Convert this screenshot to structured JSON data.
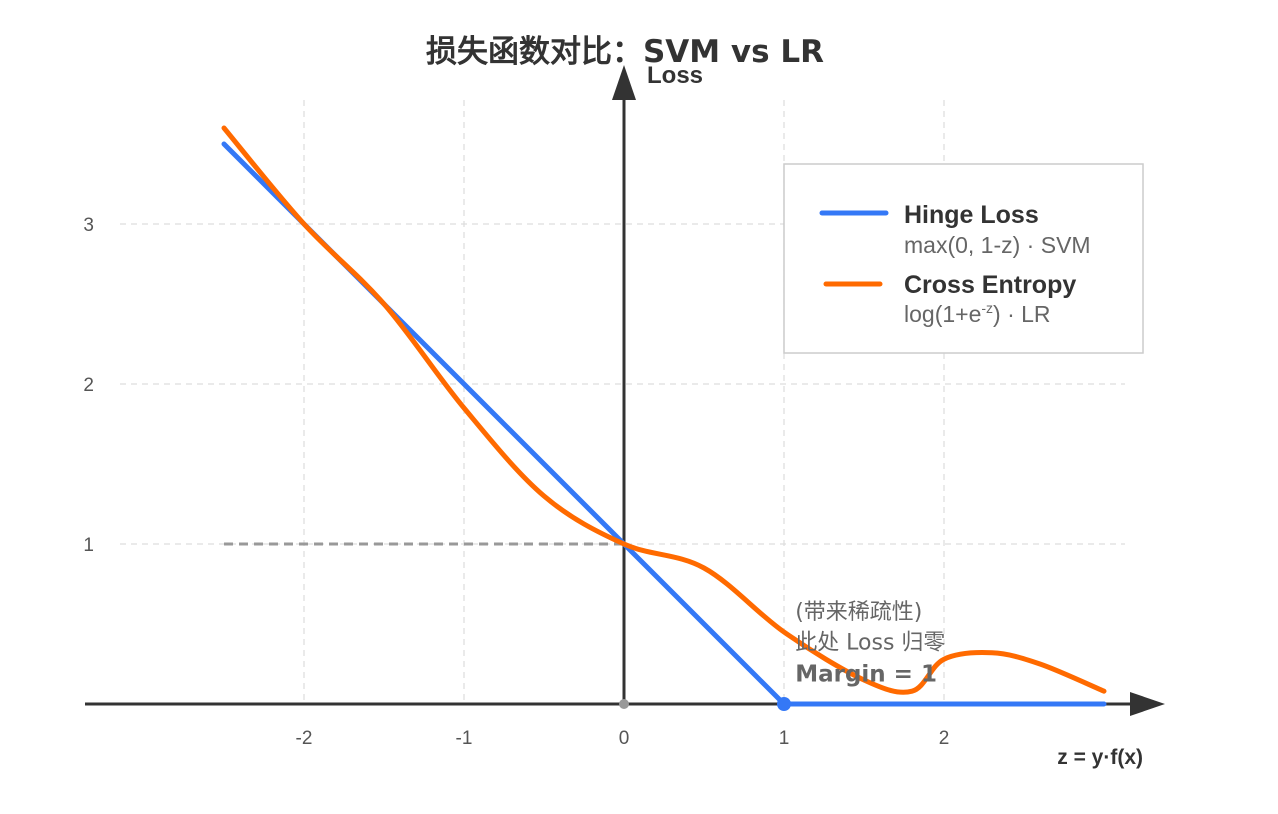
{
  "chart_data": {
    "type": "line",
    "title": "损失函数对比：SVM vs LR",
    "xlabel": "z = y·f(x)",
    "ylabel": "Loss",
    "xlim": [
      -3.4,
      3.4
    ],
    "ylim": [
      0,
      3.8
    ],
    "x_ticks": [
      -2,
      -1,
      0,
      1,
      2
    ],
    "y_ticks": [
      1,
      2,
      3
    ],
    "x_tick_labels": [
      "-2",
      "-1",
      "0",
      "1",
      "2"
    ],
    "y_tick_labels": [
      "1",
      "2",
      "3"
    ],
    "grid": true,
    "legend_position": "top-right",
    "series": [
      {
        "name": "Hinge Loss",
        "formula": "max(0, 1-z) · SVM",
        "color": "#3478f6",
        "x": [
          -2.5,
          1.0,
          3.0
        ],
        "y": [
          3.5,
          0.0,
          0.0
        ]
      },
      {
        "name": "Cross Entropy",
        "formula_prefix": "log(1+e",
        "formula_sup": "-z",
        "formula_suffix": ") · LR",
        "color": "#ff6a00",
        "x": [
          -2.5,
          -2.0,
          -1.5,
          -1.0,
          -0.5,
          0.0,
          0.5,
          1.0,
          1.5,
          1.8,
          2.0,
          2.3,
          2.6,
          3.0
        ],
        "y": [
          3.6,
          3.0,
          2.5,
          1.85,
          1.3,
          1.0,
          0.85,
          0.45,
          0.15,
          0.08,
          0.28,
          0.32,
          0.25,
          0.08
        ]
      }
    ],
    "reference_lines": [
      {
        "from": [
          -2.5,
          1.0
        ],
        "to": [
          0.0,
          1.0
        ],
        "color": "#999999",
        "style": "dashed"
      },
      {
        "from": [
          0.0,
          0.0
        ],
        "to": [
          1.0,
          0.0
        ],
        "color": "#999999",
        "style": "dashed"
      }
    ],
    "markers": [
      {
        "x": 0.0,
        "y": 0.0,
        "color": "#999999"
      },
      {
        "x": 1.0,
        "y": 0.0,
        "color": "#3478f6"
      }
    ],
    "annotations": [
      {
        "text": "(带来稀疏性)",
        "x": 1.07,
        "y": 0.53,
        "color": "#666666",
        "bold": false
      },
      {
        "text": "此处 Loss 归零",
        "x": 1.07,
        "y": 0.34,
        "color": "#666666",
        "bold": false
      },
      {
        "text": "Margin = 1",
        "x": 1.07,
        "y": 0.14,
        "color": "#3478f6",
        "bold": true
      }
    ]
  }
}
